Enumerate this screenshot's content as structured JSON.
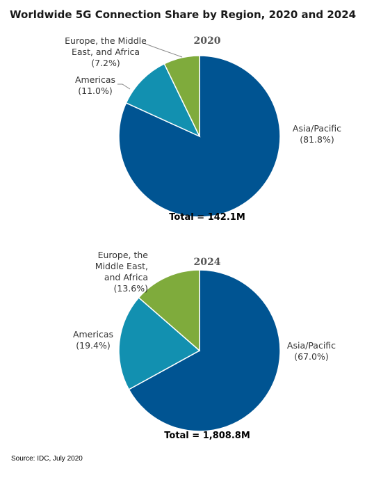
{
  "title": "Worldwide 5G Connection Share by Region, 2020 and 2024",
  "source": "Source: IDC, July 2020",
  "colors": {
    "asia_pacific": "#005492",
    "americas": "#1290b0",
    "emea": "#7fab3c",
    "slice_border": "#ffffff"
  },
  "chart_data": [
    {
      "type": "pie",
      "title": "2020",
      "total_label": "Total = 142.1M",
      "slices": [
        {
          "key": "asia_pacific",
          "lines": [
            "Asia/Pacific",
            "(81.8%)"
          ],
          "value": 81.8
        },
        {
          "key": "americas",
          "lines": [
            "Americas",
            "(11.0%)"
          ],
          "value": 11.0
        },
        {
          "key": "emea",
          "lines": [
            "Europe, the Middle",
            "East, and Africa",
            "(7.2%)"
          ],
          "value": 7.2
        }
      ]
    },
    {
      "type": "pie",
      "title": "2024",
      "total_label": "Total = 1,808.8M",
      "slices": [
        {
          "key": "asia_pacific",
          "lines": [
            "Asia/Pacific",
            "(67.0%)"
          ],
          "value": 67.0
        },
        {
          "key": "americas",
          "lines": [
            "Americas",
            "(19.4%)"
          ],
          "value": 19.4
        },
        {
          "key": "emea",
          "lines": [
            "Europe, the",
            "Middle East,",
            "and Africa",
            "(13.6%)"
          ],
          "value": 13.6
        }
      ]
    }
  ]
}
